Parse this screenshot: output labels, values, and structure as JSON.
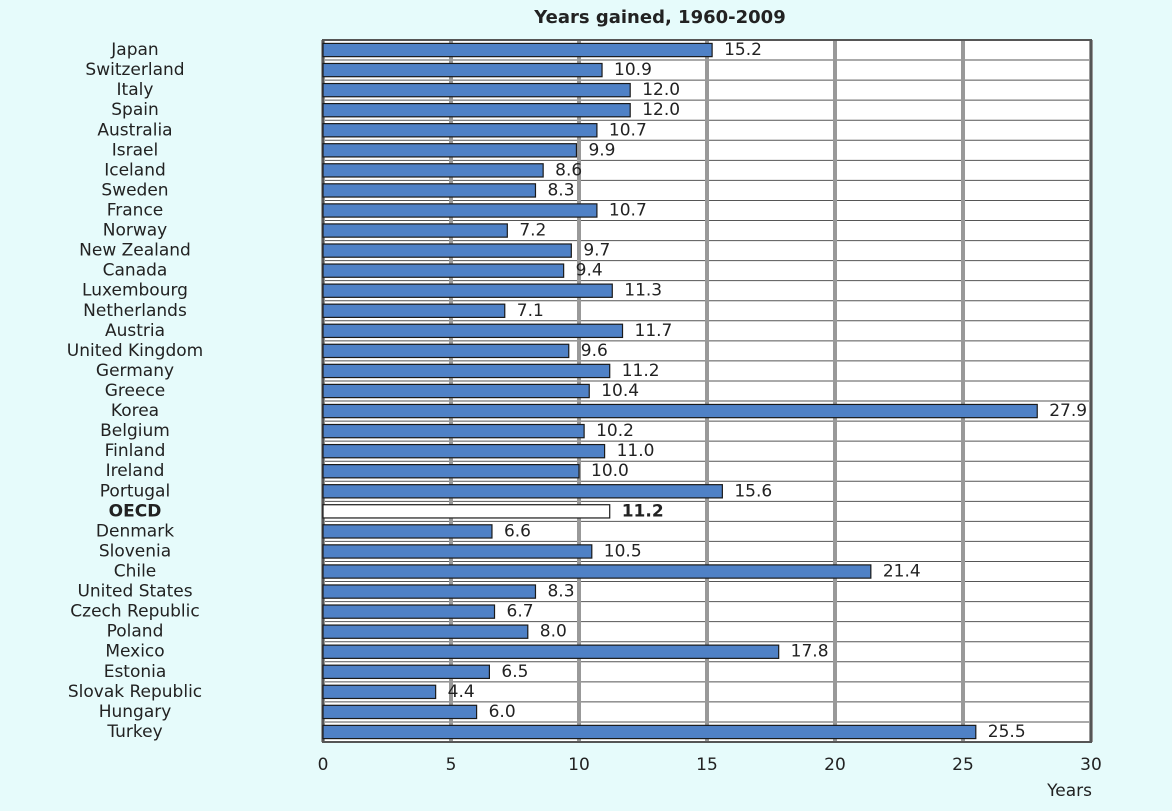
{
  "chart_data": {
    "type": "barh",
    "title": "Years gained, 1960-2009",
    "xlabel": "Years",
    "categories": [
      "Japan",
      "Switzerland",
      "Italy",
      "Spain",
      "Australia",
      "Israel",
      "Iceland",
      "Sweden",
      "France",
      "Norway",
      "New Zealand",
      "Canada",
      "Luxembourg",
      "Netherlands",
      "Austria",
      "United Kingdom",
      "Germany",
      "Greece",
      "Korea",
      "Belgium",
      "Finland",
      "Ireland",
      "Portugal",
      "OECD",
      "Denmark",
      "Slovenia",
      "Chile",
      "United States",
      "Czech Republic",
      "Poland",
      "Mexico",
      "Estonia",
      "Slovak Republic",
      "Hungary",
      "Turkey"
    ],
    "values": [
      15.2,
      10.9,
      12.0,
      12.0,
      10.7,
      9.9,
      8.6,
      8.3,
      10.7,
      7.2,
      9.7,
      9.4,
      11.3,
      7.1,
      11.7,
      9.6,
      11.2,
      10.4,
      27.9,
      10.2,
      11.0,
      10.0,
      15.6,
      11.2,
      6.6,
      10.5,
      21.4,
      8.3,
      6.7,
      8.0,
      17.8,
      6.5,
      4.4,
      6.0,
      25.5
    ],
    "value_labels": [
      "15.2",
      "10.9",
      "12.0",
      "12.0",
      "10.7",
      "9.9",
      "8.6",
      "8.3",
      "10.7",
      "7.2",
      "9.7",
      "9.4",
      "11.3",
      "7.1",
      "11.7",
      "9.6",
      "11.2",
      "10.4",
      "27.9",
      "10.2",
      "11.0",
      "10.0",
      "15.6",
      "11.2",
      "6.6",
      "10.5",
      "21.4",
      "8.3",
      "6.7",
      "8.0",
      "17.8",
      "6.5",
      "4.4",
      "6.0",
      "25.5"
    ],
    "colors": [
      "#4f81c6",
      "#4f81c6",
      "#4f81c6",
      "#4f81c6",
      "#4f81c6",
      "#4f81c6",
      "#4f81c6",
      "#4f81c6",
      "#4f81c6",
      "#4f81c6",
      "#4f81c6",
      "#4f81c6",
      "#4f81c6",
      "#4f81c6",
      "#4f81c6",
      "#4f81c6",
      "#4f81c6",
      "#4f81c6",
      "#4f81c6",
      "#4f81c6",
      "#4f81c6",
      "#4f81c6",
      "#4f81c6",
      "#ffffff",
      "#4f81c6",
      "#4f81c6",
      "#4f81c6",
      "#4f81c6",
      "#4f81c6",
      "#4f81c6",
      "#4f81c6",
      "#4f81c6",
      "#4f81c6",
      "#4f81c6",
      "#4f81c6"
    ],
    "xlim": [
      0,
      30
    ],
    "xticks": [
      0,
      5,
      10,
      15,
      20,
      25,
      30
    ],
    "grid": true
  }
}
